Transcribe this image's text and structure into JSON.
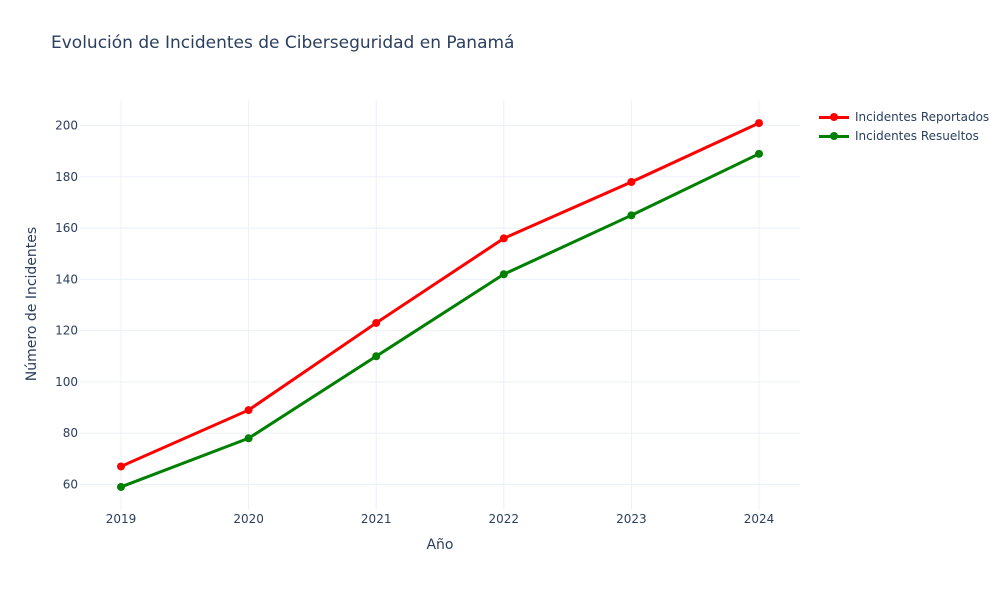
{
  "chart_data": {
    "type": "line",
    "title": "Evolución de Incidentes de Ciberseguridad en Panamá",
    "xlabel": "Año",
    "ylabel": "Número de Incidentes",
    "x": [
      "2019",
      "2020",
      "2021",
      "2022",
      "2023",
      "2024"
    ],
    "ylim": [
      50,
      210
    ],
    "yticks": [
      60,
      80,
      100,
      120,
      140,
      160,
      180,
      200
    ],
    "grid": true,
    "legend_position": "top-right",
    "series": [
      {
        "name": "Incidentes Reportados",
        "color": "#ff0000",
        "values": [
          67,
          89,
          123,
          156,
          178,
          201
        ]
      },
      {
        "name": "Incidentes Resueltos",
        "color": "#008000",
        "values": [
          59,
          78,
          110,
          142,
          165,
          189
        ]
      }
    ]
  }
}
